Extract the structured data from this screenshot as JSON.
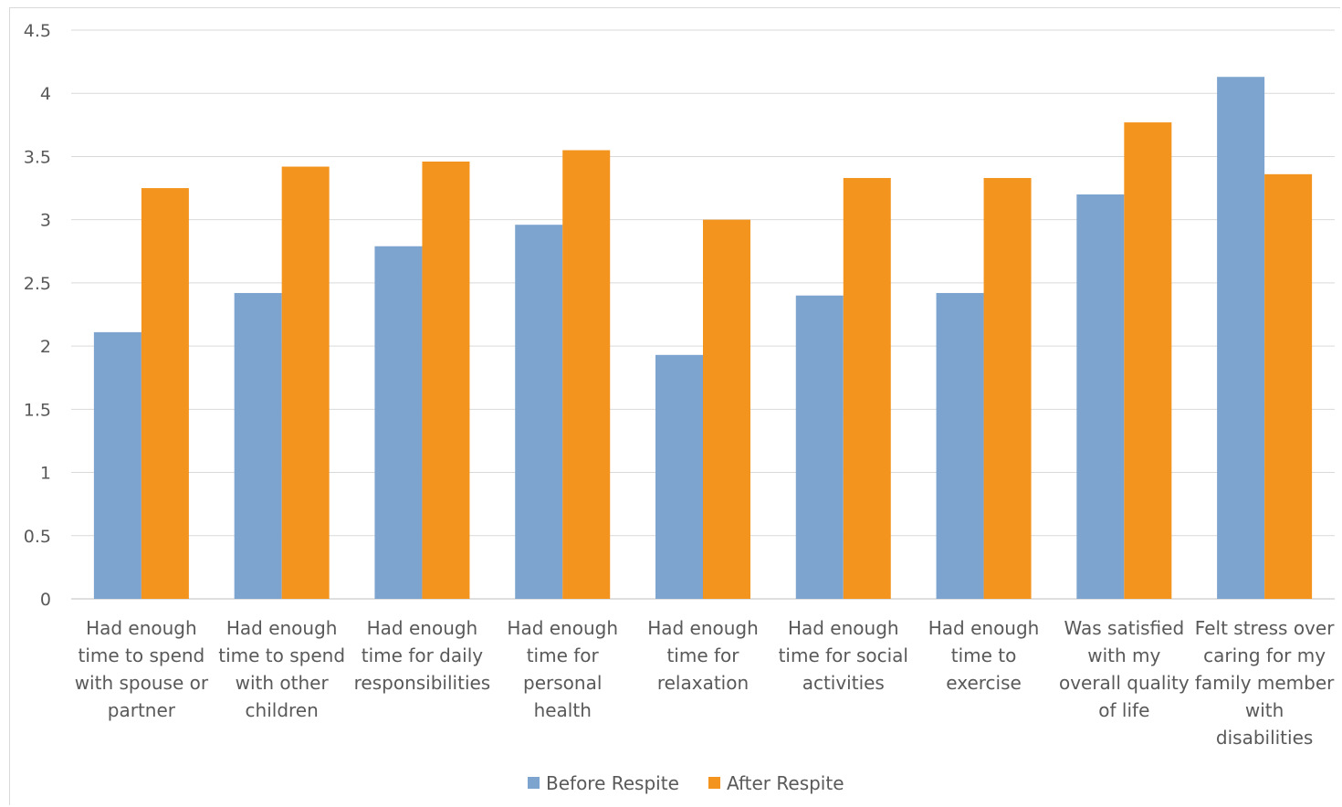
{
  "chart_data": {
    "type": "bar",
    "title": "",
    "xlabel": "",
    "ylabel": "",
    "ylim": [
      0,
      4.5
    ],
    "yticks": [
      "0",
      "0.5",
      "1",
      "1.5",
      "2",
      "2.5",
      "3",
      "3.5",
      "4",
      "4.5"
    ],
    "grid": true,
    "legend_position": "bottom",
    "categories": [
      [
        "Had enough",
        "time to spend",
        "with spouse or",
        "partner"
      ],
      [
        "Had enough",
        "time to spend",
        "with other",
        "children"
      ],
      [
        "Had enough",
        "time for daily",
        "responsibilities"
      ],
      [
        "Had enough",
        "time for",
        "personal",
        "health"
      ],
      [
        "Had enough",
        "time for",
        "relaxation"
      ],
      [
        "Had enough",
        "time for social",
        "activities"
      ],
      [
        "Had enough",
        "time to",
        "exercise"
      ],
      [
        "Was satisfied",
        "with my",
        "overall quality",
        "of life"
      ],
      [
        "Felt stress over",
        "caring for my",
        "family member",
        "with",
        "disabilities"
      ]
    ],
    "series": [
      {
        "name": "Before Respite",
        "color": "#7da3cf",
        "values": [
          2.11,
          2.42,
          2.79,
          2.96,
          1.93,
          2.4,
          2.42,
          3.2,
          4.13
        ]
      },
      {
        "name": "After Respite",
        "color": "#f3941f",
        "values": [
          3.25,
          3.42,
          3.46,
          3.55,
          3.0,
          3.33,
          3.33,
          3.77,
          3.36
        ]
      }
    ]
  }
}
